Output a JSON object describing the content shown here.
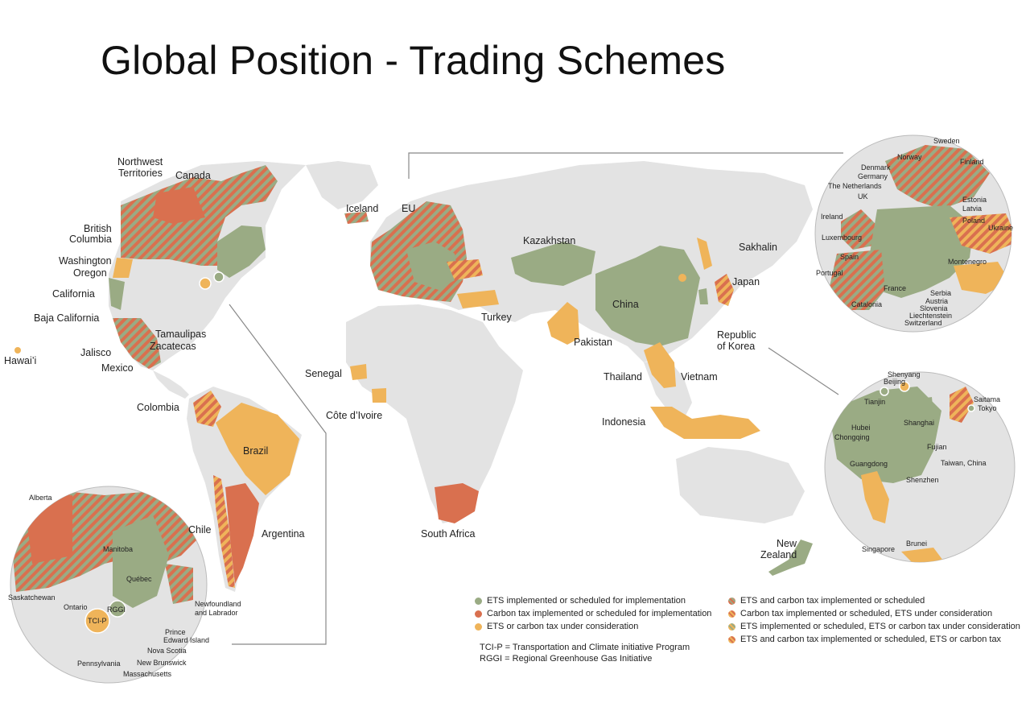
{
  "title": "Global Position - Trading Schemes",
  "colors": {
    "ets": "#9aab84",
    "tax": "#d9704f",
    "consideration": "#efb45a",
    "land": "#e3e3e3",
    "ocean": "#ffffff"
  },
  "labels": {
    "northwest_territories": [
      "Northwest",
      "Territories"
    ],
    "canada": "Canada",
    "british_columbia": [
      "British",
      "Columbia"
    ],
    "washington": "Washington",
    "oregon": "Oregon",
    "california": "California",
    "baja_california": "Baja California",
    "tamaulipas": "Tamaulipas",
    "zacatecas": "Zacatecas",
    "jalisco": "Jalisco",
    "mexico": "Mexico",
    "hawaii": "Hawai’i",
    "colombia": "Colombia",
    "brazil": "Brazil",
    "chile": "Chile",
    "argentina": "Argentina",
    "iceland": "Iceland",
    "eu": "EU",
    "senegal": "Senegal",
    "cote_divoire": "Côte d’Ivoire",
    "south_africa": "South Africa",
    "kazakhstan": "Kazakhstan",
    "turkey": "Turkey",
    "pakistan": "Pakistan",
    "china": "China",
    "sakhalin": "Sakhalin",
    "japan": "Japan",
    "republic_of_korea": [
      "Republic",
      "of Korea"
    ],
    "thailand": "Thailand",
    "vietnam": "Vietnam",
    "indonesia": "Indonesia",
    "new_zealand": [
      "New",
      "Zealand"
    ]
  },
  "europe_inset": {
    "labels": [
      "Sweden",
      "Norway",
      "Finland",
      "Denmark",
      "Germany",
      "The Netherlands",
      "UK",
      "Estonia",
      "Latvia",
      "Ireland",
      "Poland",
      "Ukraine",
      "Luxembourg",
      "Spain",
      "Montenegro",
      "Portugal",
      "France",
      "Serbia",
      "Austria",
      "Catalonia",
      "Slovenia",
      "Liechtenstein",
      "Switzerland"
    ]
  },
  "asia_inset": {
    "labels": [
      "Beijing",
      "Shenyang",
      "Tianjin",
      "Saitama",
      "Tokyo",
      "Hubei",
      "Shanghai",
      "Chongqing",
      "Fujian",
      "Guangdong",
      "Taiwan, China",
      "Shenzhen",
      "Singapore",
      "Brunei"
    ]
  },
  "canada_inset": {
    "labels": [
      "Alberta",
      "Manitoba",
      "Saskatchewan",
      "Québec",
      "Ontario",
      "Newfoundland",
      "and Labrador",
      "RGGI",
      "TCI-P",
      "Prince",
      "Edward Island",
      "Nova Scotia",
      "New Brunswick",
      "Pennsylvania",
      "Massachusetts"
    ]
  },
  "legend": {
    "left": [
      {
        "text": "ETS implemented or scheduled for implementation",
        "color": "#9aab84",
        "pattern": "solid"
      },
      {
        "text": "Carbon tax implemented or scheduled for implementation",
        "color": "#d9704f",
        "pattern": "solid"
      },
      {
        "text": "ETS or carbon tax under consideration",
        "color": "#efb45a",
        "pattern": "solid"
      }
    ],
    "right": [
      {
        "text": "ETS and carbon tax implemented or scheduled",
        "color": "#9aab84",
        "color2": "#d9704f",
        "pattern": "striped"
      },
      {
        "text": "Carbon tax implemented or scheduled, ETS under consideration",
        "color": "#d9704f",
        "color2": "#efb45a",
        "pattern": "striped"
      },
      {
        "text": "ETS implemented or scheduled, ETS or carbon tax under consideration",
        "color": "#9aab84",
        "color2": "#efb45a",
        "pattern": "striped"
      },
      {
        "text": "ETS and carbon tax implemented or scheduled, ETS or carbon tax",
        "color": "#d9704f",
        "color2": "#efb45a",
        "pattern": "striped"
      }
    ]
  },
  "notes": [
    "TCI-P = Transportation and Climate initiative Program",
    "RGGI = Regional Greenhouse Gas Initiative"
  ]
}
